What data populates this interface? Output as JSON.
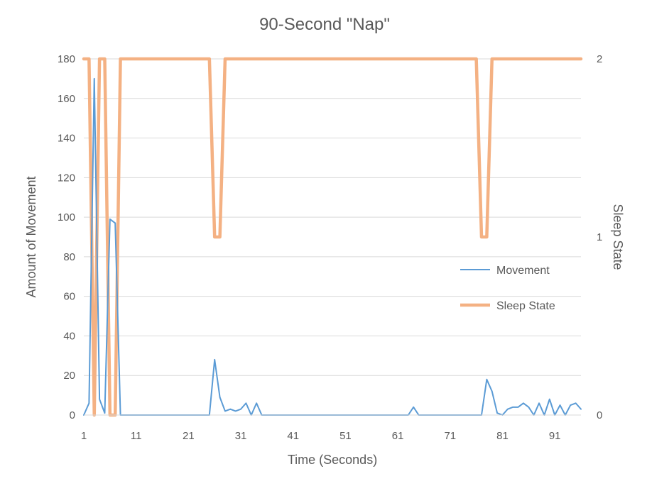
{
  "chart_data": {
    "type": "line",
    "title": "90-Second \"Nap\"",
    "xlabel": "Time (Seconds)",
    "ylabel": "Amount of Movement",
    "y2label": "Sleep State",
    "xlim": [
      1,
      96
    ],
    "ylim": [
      0,
      180
    ],
    "y2lim": [
      0,
      2
    ],
    "x_ticks": [
      1,
      11,
      21,
      31,
      41,
      51,
      61,
      71,
      81,
      91
    ],
    "y_ticks": [
      0,
      20,
      40,
      60,
      80,
      100,
      120,
      140,
      160,
      180
    ],
    "y2_ticks": [
      0,
      1,
      2
    ],
    "grid": true,
    "legend_position": "right",
    "series": [
      {
        "name": "Movement",
        "axis": "left",
        "color": "#5b9bd5",
        "x": [
          1,
          2,
          3,
          4,
          5,
          6,
          7,
          8,
          9,
          10,
          11,
          12,
          13,
          14,
          15,
          16,
          17,
          18,
          19,
          20,
          21,
          22,
          23,
          24,
          25,
          26,
          27,
          28,
          29,
          30,
          31,
          32,
          33,
          34,
          35,
          36,
          37,
          38,
          39,
          40,
          41,
          42,
          43,
          44,
          45,
          46,
          47,
          48,
          49,
          50,
          51,
          52,
          53,
          54,
          55,
          56,
          57,
          58,
          59,
          60,
          61,
          62,
          63,
          64,
          65,
          66,
          67,
          68,
          69,
          70,
          71,
          72,
          73,
          74,
          75,
          76,
          77,
          78,
          79,
          80,
          81,
          82,
          83,
          84,
          85,
          86,
          87,
          88,
          89,
          90,
          91,
          92,
          93,
          94,
          95,
          96
        ],
        "values": [
          0,
          6,
          170,
          8,
          1,
          99,
          97,
          0,
          0,
          0,
          0,
          0,
          0,
          0,
          0,
          0,
          0,
          0,
          0,
          0,
          0,
          0,
          0,
          0,
          0,
          28,
          9,
          2,
          3,
          2,
          3,
          6,
          0,
          6,
          0,
          0,
          0,
          0,
          0,
          0,
          0,
          0,
          0,
          0,
          0,
          0,
          0,
          0,
          0,
          0,
          0,
          0,
          0,
          0,
          0,
          0,
          0,
          0,
          0,
          0,
          0,
          0,
          0,
          4,
          0,
          0,
          0,
          0,
          0,
          0,
          0,
          0,
          0,
          0,
          0,
          0,
          0,
          18,
          12,
          1,
          0,
          3,
          4,
          4,
          6,
          4,
          0,
          6,
          0,
          8,
          0,
          5,
          0,
          5,
          6,
          3
        ]
      },
      {
        "name": "Sleep State",
        "axis": "right",
        "color": "#f4b183",
        "x": [
          1,
          2,
          3,
          4,
          5,
          6,
          7,
          8,
          9,
          10,
          11,
          12,
          13,
          14,
          15,
          16,
          17,
          18,
          19,
          20,
          21,
          22,
          23,
          24,
          25,
          26,
          27,
          28,
          29,
          30,
          31,
          32,
          33,
          34,
          35,
          36,
          37,
          38,
          39,
          40,
          41,
          42,
          43,
          44,
          45,
          46,
          47,
          48,
          49,
          50,
          51,
          52,
          53,
          54,
          55,
          56,
          57,
          58,
          59,
          60,
          61,
          62,
          63,
          64,
          65,
          66,
          67,
          68,
          69,
          70,
          71,
          72,
          73,
          74,
          75,
          76,
          77,
          78,
          79,
          80,
          81,
          82,
          83,
          84,
          85,
          86,
          87,
          88,
          89,
          90,
          91,
          92,
          93,
          94,
          95,
          96
        ],
        "values": [
          2,
          2,
          0,
          2,
          2,
          0,
          0,
          2,
          2,
          2,
          2,
          2,
          2,
          2,
          2,
          2,
          2,
          2,
          2,
          2,
          2,
          2,
          2,
          2,
          2,
          1,
          1,
          2,
          2,
          2,
          2,
          2,
          2,
          2,
          2,
          2,
          2,
          2,
          2,
          2,
          2,
          2,
          2,
          2,
          2,
          2,
          2,
          2,
          2,
          2,
          2,
          2,
          2,
          2,
          2,
          2,
          2,
          2,
          2,
          2,
          2,
          2,
          2,
          2,
          2,
          2,
          2,
          2,
          2,
          2,
          2,
          2,
          2,
          2,
          2,
          2,
          1,
          1,
          2,
          2,
          2,
          2,
          2,
          2,
          2,
          2,
          2,
          2,
          2,
          2,
          2,
          2,
          2,
          2,
          2,
          2
        ]
      }
    ]
  }
}
